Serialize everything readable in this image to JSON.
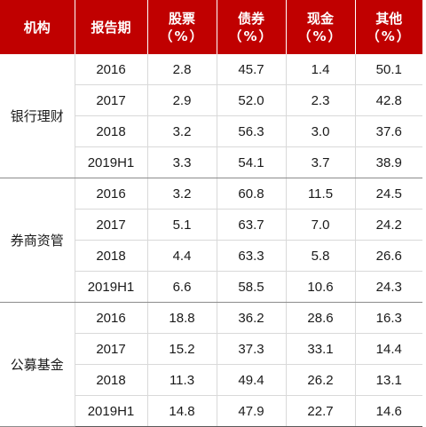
{
  "headers": {
    "institution": "机构",
    "period": "报告期",
    "stocks": "股票",
    "bonds": "债券",
    "cash": "现金",
    "other": "其他",
    "unit": "（%）"
  },
  "groups": [
    {
      "institution": "银行理财",
      "rows": [
        {
          "period": "2016",
          "stocks": "2.8",
          "bonds": "45.7",
          "cash": "1.4",
          "other": "50.1"
        },
        {
          "period": "2017",
          "stocks": "2.9",
          "bonds": "52.0",
          "cash": "2.3",
          "other": "42.8"
        },
        {
          "period": "2018",
          "stocks": "3.2",
          "bonds": "56.3",
          "cash": "3.0",
          "other": "37.6"
        },
        {
          "period": "2019H1",
          "stocks": "3.3",
          "bonds": "54.1",
          "cash": "3.7",
          "other": "38.9"
        }
      ]
    },
    {
      "institution": "券商资管",
      "rows": [
        {
          "period": "2016",
          "stocks": "3.2",
          "bonds": "60.8",
          "cash": "11.5",
          "other": "24.5"
        },
        {
          "period": "2017",
          "stocks": "5.1",
          "bonds": "63.7",
          "cash": "7.0",
          "other": "24.2"
        },
        {
          "period": "2018",
          "stocks": "4.4",
          "bonds": "63.3",
          "cash": "5.8",
          "other": "26.6"
        },
        {
          "period": "2019H1",
          "stocks": "6.6",
          "bonds": "58.5",
          "cash": "10.6",
          "other": "24.3"
        }
      ]
    },
    {
      "institution": "公募基金",
      "rows": [
        {
          "period": "2016",
          "stocks": "18.8",
          "bonds": "36.2",
          "cash": "28.6",
          "other": "16.3"
        },
        {
          "period": "2017",
          "stocks": "15.2",
          "bonds": "37.3",
          "cash": "33.1",
          "other": "14.4"
        },
        {
          "period": "2018",
          "stocks": "11.3",
          "bonds": "49.4",
          "cash": "26.2",
          "other": "13.1"
        },
        {
          "period": "2019H1",
          "stocks": "14.8",
          "bonds": "47.9",
          "cash": "22.7",
          "other": "14.6"
        }
      ]
    }
  ],
  "colors": {
    "header_bg": "#c00000",
    "header_text": "#ffffff"
  }
}
